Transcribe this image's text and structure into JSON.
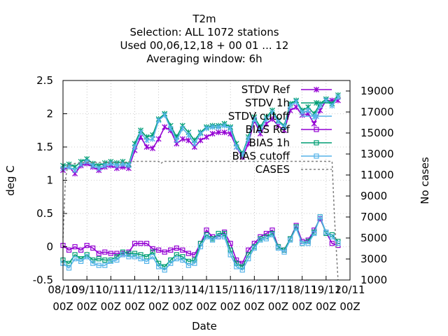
{
  "chart_data": {
    "type": "line",
    "title_lines": [
      "T2m",
      "Selection: ALL    1072 stations",
      "Used  00,06,12,18 + 00 01 ... 12",
      "Averaging window:  6h"
    ],
    "xlabel": "Date",
    "ylabel": "deg C",
    "y2label": "No cases",
    "x_ticks": [
      {
        "top": "08/10",
        "bottom": "00Z"
      },
      {
        "top": "09/11",
        "bottom": "00Z"
      },
      {
        "top": "10/11",
        "bottom": "00Z"
      },
      {
        "top": "11/11",
        "bottom": "00Z"
      },
      {
        "top": "12/11",
        "bottom": "00Z"
      },
      {
        "top": "13/11",
        "bottom": "00Z"
      },
      {
        "top": "14/11",
        "bottom": "00Z"
      },
      {
        "top": "15/11",
        "bottom": "00Z"
      },
      {
        "top": "16/11",
        "bottom": "00Z"
      },
      {
        "top": "17/11",
        "bottom": "00Z"
      },
      {
        "top": "18/11",
        "bottom": "00Z"
      },
      {
        "top": "19/11",
        "bottom": "00Z"
      },
      {
        "top": "20/11",
        "bottom": "00Z"
      }
    ],
    "xlim": [
      0,
      12
    ],
    "ylim": [
      -0.5,
      2.5
    ],
    "y_ticks": [
      "-0.5",
      "0",
      "0.5",
      "1",
      "1.5",
      "2",
      "2.5"
    ],
    "y2lim": [
      1000,
      20000
    ],
    "y2_ticks": [
      "1000",
      "3000",
      "5000",
      "7000",
      "9000",
      "11000",
      "13000",
      "15000",
      "17000",
      "19000"
    ],
    "grid": true,
    "legend_position": "top-right",
    "series": [
      {
        "name": "STDV Ref",
        "color": "#9400d3",
        "marker": "star",
        "dash": "",
        "axis": "y",
        "x": [
          0,
          0.25,
          0.5,
          0.75,
          1,
          1.25,
          1.5,
          1.75,
          2,
          2.25,
          2.5,
          2.75,
          3,
          3.25,
          3.5,
          3.75,
          4,
          4.25,
          4.5,
          4.75,
          5,
          5.25,
          5.5,
          5.75,
          6,
          6.25,
          6.5,
          6.75,
          7,
          7.25,
          7.5,
          7.75,
          8,
          8.25,
          8.5,
          8.75,
          9,
          9.25,
          9.5,
          9.75,
          10,
          10.25,
          10.5,
          10.75,
          11,
          11.25,
          11.5
        ],
        "y": [
          1.15,
          1.2,
          1.1,
          1.22,
          1.25,
          1.2,
          1.15,
          1.2,
          1.22,
          1.18,
          1.2,
          1.18,
          1.45,
          1.65,
          1.5,
          1.48,
          1.62,
          1.8,
          1.75,
          1.55,
          1.62,
          1.6,
          1.5,
          1.6,
          1.65,
          1.7,
          1.72,
          1.72,
          1.7,
          1.5,
          1.35,
          1.55,
          1.9,
          1.7,
          1.85,
          1.92,
          1.82,
          1.75,
          2.05,
          2.1,
          1.98,
          2.0,
          1.85,
          2.05,
          2.2,
          2.2,
          2.2
        ]
      },
      {
        "name": "STDV 1h",
        "color": "#009e73",
        "marker": "star",
        "dash": "",
        "axis": "y",
        "x": [
          0,
          0.25,
          0.5,
          0.75,
          1,
          1.25,
          1.5,
          1.75,
          2,
          2.25,
          2.5,
          2.75,
          3,
          3.25,
          3.5,
          3.75,
          4,
          4.25,
          4.5,
          4.75,
          5,
          5.25,
          5.5,
          5.75,
          6,
          6.25,
          6.5,
          6.75,
          7,
          7.25,
          7.5,
          7.75,
          8,
          8.25,
          8.5,
          8.75,
          9,
          9.25,
          9.5,
          9.75,
          10,
          10.25,
          10.5,
          10.75,
          11,
          11.25,
          11.5
        ],
        "y": [
          1.22,
          1.24,
          1.2,
          1.28,
          1.32,
          1.25,
          1.22,
          1.26,
          1.28,
          1.26,
          1.28,
          1.24,
          1.55,
          1.75,
          1.65,
          1.68,
          1.92,
          2.0,
          1.82,
          1.65,
          1.82,
          1.72,
          1.6,
          1.72,
          1.8,
          1.82,
          1.82,
          1.85,
          1.8,
          1.55,
          1.4,
          1.65,
          1.95,
          1.8,
          1.95,
          2.05,
          1.9,
          1.82,
          2.15,
          2.2,
          2.05,
          2.1,
          2.0,
          2.15,
          2.22,
          2.15,
          2.28
        ]
      },
      {
        "name": "STDV cutoff",
        "color": "#56b4e9",
        "marker": "star",
        "dash": "",
        "axis": "y",
        "x": [
          0,
          0.25,
          0.5,
          0.75,
          1,
          1.25,
          1.5,
          1.75,
          2,
          2.25,
          2.5,
          2.75,
          3,
          3.25,
          3.5,
          3.75,
          4,
          4.25,
          4.5,
          4.75,
          5,
          5.25,
          5.5,
          5.75,
          6,
          6.25,
          6.5,
          6.75,
          7,
          7.25,
          7.5,
          7.75,
          8,
          8.25,
          8.5,
          8.75,
          9,
          9.25,
          9.5,
          9.75,
          10,
          10.25,
          10.5,
          10.75,
          11,
          11.25,
          11.5
        ],
        "y": [
          1.18,
          1.2,
          1.15,
          1.24,
          1.28,
          1.22,
          1.18,
          1.22,
          1.25,
          1.22,
          1.24,
          1.22,
          1.5,
          1.72,
          1.6,
          1.62,
          1.9,
          1.98,
          1.78,
          1.6,
          1.78,
          1.68,
          1.55,
          1.7,
          1.78,
          1.8,
          1.8,
          1.82,
          1.78,
          1.5,
          1.38,
          1.62,
          1.92,
          1.75,
          1.92,
          2.02,
          1.88,
          1.8,
          2.12,
          2.18,
          2.02,
          2.05,
          1.95,
          2.12,
          2.2,
          2.12,
          2.25
        ]
      },
      {
        "name": "BIAS Ref",
        "color": "#9400d3",
        "marker": "square",
        "dash": "",
        "axis": "y",
        "x": [
          0,
          0.25,
          0.5,
          0.75,
          1,
          1.25,
          1.5,
          1.75,
          2,
          2.25,
          2.5,
          2.75,
          3,
          3.25,
          3.5,
          3.75,
          4,
          4.25,
          4.5,
          4.75,
          5,
          5.25,
          5.5,
          5.75,
          6,
          6.25,
          6.5,
          6.75,
          7,
          7.25,
          7.5,
          7.75,
          8,
          8.25,
          8.5,
          8.75,
          9,
          9.25,
          9.5,
          9.75,
          10,
          10.25,
          10.5,
          10.75,
          11,
          11.25,
          11.5
        ],
        "y": [
          0.02,
          -0.05,
          0.0,
          -0.05,
          0.02,
          -0.02,
          -0.1,
          -0.08,
          -0.1,
          -0.1,
          -0.1,
          -0.08,
          0.05,
          0.05,
          0.05,
          -0.03,
          -0.05,
          -0.08,
          -0.05,
          -0.02,
          -0.05,
          -0.1,
          -0.12,
          0.05,
          0.25,
          0.15,
          0.15,
          0.22,
          0.05,
          -0.2,
          -0.25,
          -0.05,
          0.05,
          0.15,
          0.2,
          0.25,
          0.0,
          -0.05,
          0.12,
          0.32,
          0.08,
          0.1,
          0.25,
          0.42,
          0.22,
          0.05,
          0.02
        ]
      },
      {
        "name": "BIAS 1h",
        "color": "#009e73",
        "marker": "square",
        "dash": "",
        "axis": "y",
        "x": [
          0,
          0.25,
          0.5,
          0.75,
          1,
          1.25,
          1.5,
          1.75,
          2,
          2.25,
          2.5,
          2.75,
          3,
          3.25,
          3.5,
          3.75,
          4,
          4.25,
          4.5,
          4.75,
          5,
          5.25,
          5.5,
          5.75,
          6,
          6.25,
          6.5,
          6.75,
          7,
          7.25,
          7.5,
          7.75,
          8,
          8.25,
          8.5,
          8.75,
          9,
          9.25,
          9.5,
          9.75,
          10,
          10.25,
          10.5,
          10.75,
          11,
          11.25,
          11.5
        ],
        "y": [
          -0.2,
          -0.25,
          -0.12,
          -0.18,
          -0.12,
          -0.2,
          -0.18,
          -0.2,
          -0.2,
          -0.15,
          -0.08,
          -0.1,
          -0.1,
          -0.12,
          -0.15,
          -0.08,
          -0.25,
          -0.3,
          -0.2,
          -0.12,
          -0.15,
          -0.22,
          -0.2,
          0.05,
          0.18,
          0.12,
          0.2,
          0.2,
          -0.05,
          -0.25,
          -0.3,
          -0.12,
          0.0,
          0.12,
          0.15,
          0.2,
          0.0,
          -0.05,
          0.12,
          0.3,
          0.05,
          0.08,
          0.22,
          0.45,
          0.2,
          0.18,
          0.08
        ]
      },
      {
        "name": "BIAS cutoff",
        "color": "#56b4e9",
        "marker": "square",
        "dash": "",
        "axis": "y",
        "x": [
          0,
          0.25,
          0.5,
          0.75,
          1,
          1.25,
          1.5,
          1.75,
          2,
          2.25,
          2.5,
          2.75,
          3,
          3.25,
          3.5,
          3.75,
          4,
          4.25,
          4.5,
          4.75,
          5,
          5.25,
          5.5,
          5.75,
          6,
          6.25,
          6.5,
          6.75,
          7,
          7.25,
          7.5,
          7.75,
          8,
          8.25,
          8.5,
          8.75,
          9,
          9.25,
          9.5,
          9.75,
          10,
          10.25,
          10.5,
          10.75,
          11,
          11.25,
          11.5
        ],
        "y": [
          -0.25,
          -0.32,
          -0.18,
          -0.22,
          -0.15,
          -0.25,
          -0.28,
          -0.28,
          -0.22,
          -0.2,
          -0.12,
          -0.15,
          -0.15,
          -0.18,
          -0.22,
          -0.15,
          -0.3,
          -0.35,
          -0.25,
          -0.18,
          -0.2,
          -0.28,
          -0.25,
          0.0,
          0.15,
          0.1,
          0.15,
          0.15,
          -0.12,
          -0.3,
          -0.35,
          -0.18,
          -0.02,
          0.1,
          0.12,
          0.18,
          -0.02,
          -0.08,
          0.1,
          0.28,
          0.05,
          0.05,
          0.2,
          0.45,
          0.22,
          0.15,
          0.05
        ]
      },
      {
        "name": "CASES",
        "color": "#808080",
        "marker": "none",
        "dash": "3,3",
        "axis": "y2",
        "x": [
          0,
          0.1,
          0.2,
          0.5,
          1,
          2,
          2.5,
          3,
          3.5,
          4,
          4.1,
          4.2,
          5,
          6,
          7,
          8,
          9,
          10,
          11,
          11.25,
          11.35,
          11.5
        ],
        "y": [
          5000,
          10500,
          12000,
          12100,
          12200,
          12200,
          12200,
          12300,
          12300,
          12300,
          12100,
          12300,
          12300,
          12300,
          12300,
          12300,
          12300,
          12300,
          12300,
          12300,
          7000,
          1000
        ]
      }
    ]
  }
}
